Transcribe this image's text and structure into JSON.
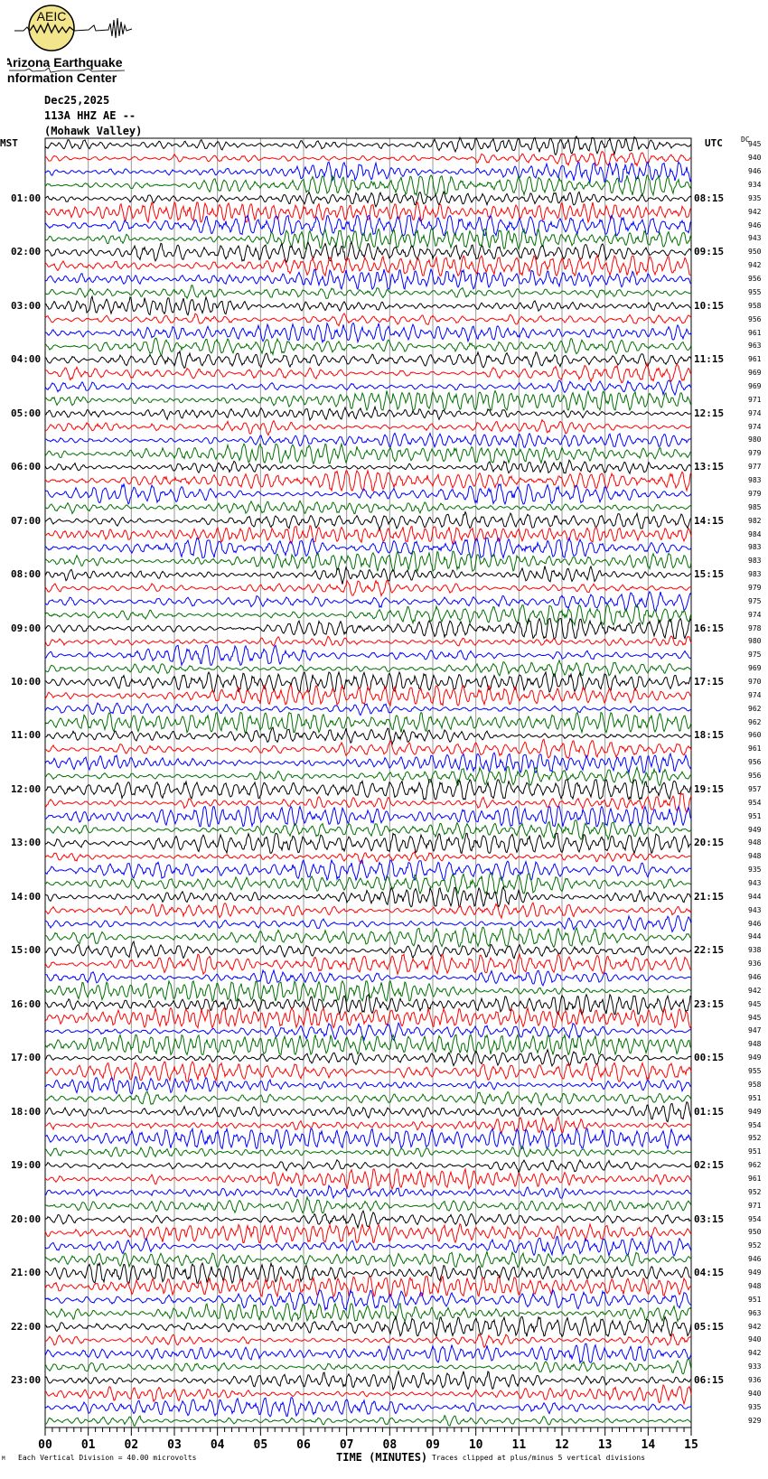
{
  "logo": {
    "text_mark": "AEIC",
    "line1": "Arizona Earthquake",
    "line2": "Information Center",
    "circle_color": "#f2e58c"
  },
  "header": {
    "date": "Dec25,2025",
    "station": "113A HHZ AE --",
    "location": "(Mohawk Valley)"
  },
  "chart_data": {
    "type": "line",
    "subtype": "helicorder",
    "left_axis_label": "MST",
    "right_axis_label": "UTC",
    "dc_label": "DC",
    "xlabel": "TIME (MINUTES)",
    "x_ticks": [
      "00",
      "01",
      "02",
      "03",
      "04",
      "05",
      "06",
      "07",
      "08",
      "09",
      "10",
      "11",
      "12",
      "13",
      "14",
      "15"
    ],
    "xlim": [
      0,
      15
    ],
    "rows": 96,
    "row_minutes": 15,
    "trace_colors": [
      "#000000",
      "#ff0000",
      "#0000ff",
      "#007000"
    ],
    "mst_hours": [
      "01:00",
      "02:00",
      "03:00",
      "04:00",
      "05:00",
      "06:00",
      "07:00",
      "08:00",
      "09:00",
      "10:00",
      "11:00",
      "12:00",
      "13:00",
      "14:00",
      "15:00",
      "16:00",
      "17:00",
      "18:00",
      "19:00",
      "20:00",
      "21:00",
      "22:00",
      "23:00"
    ],
    "utc_hours": [
      "08:15",
      "09:15",
      "10:15",
      "11:15",
      "12:15",
      "13:15",
      "14:15",
      "15:15",
      "16:15",
      "17:15",
      "18:15",
      "19:15",
      "20:15",
      "21:15",
      "22:15",
      "23:15",
      "00:15",
      "01:15",
      "02:15",
      "03:15",
      "04:15",
      "05:15",
      "06:15"
    ],
    "dc_offsets": [
      945,
      940,
      946,
      934,
      935,
      942,
      946,
      943,
      950,
      942,
      956,
      955,
      958,
      956,
      961,
      963,
      961,
      969,
      969,
      971,
      974,
      974,
      980,
      979,
      977,
      983,
      979,
      985,
      982,
      984,
      983,
      983,
      983,
      979,
      975,
      974,
      978,
      980,
      975,
      969,
      970,
      974,
      962,
      962,
      960,
      961,
      956,
      956,
      957,
      954,
      951,
      949,
      948,
      948,
      935,
      943,
      944,
      943,
      946,
      944,
      938,
      936,
      946,
      942,
      945,
      945,
      947,
      948,
      949,
      955,
      958,
      951,
      949,
      954,
      952,
      951,
      962,
      961,
      952,
      971,
      954,
      950,
      952,
      946,
      949,
      948,
      951,
      963,
      942,
      940,
      942,
      933,
      936,
      940,
      935,
      929
    ],
    "grid": "vertical lines each minute",
    "scale_note": "Each Vertical Division =    40.00 microvolts",
    "clip_note": "Traces clipped at plus/minus 5 vertical divisions"
  },
  "footer": {
    "corner_mark": "M"
  }
}
